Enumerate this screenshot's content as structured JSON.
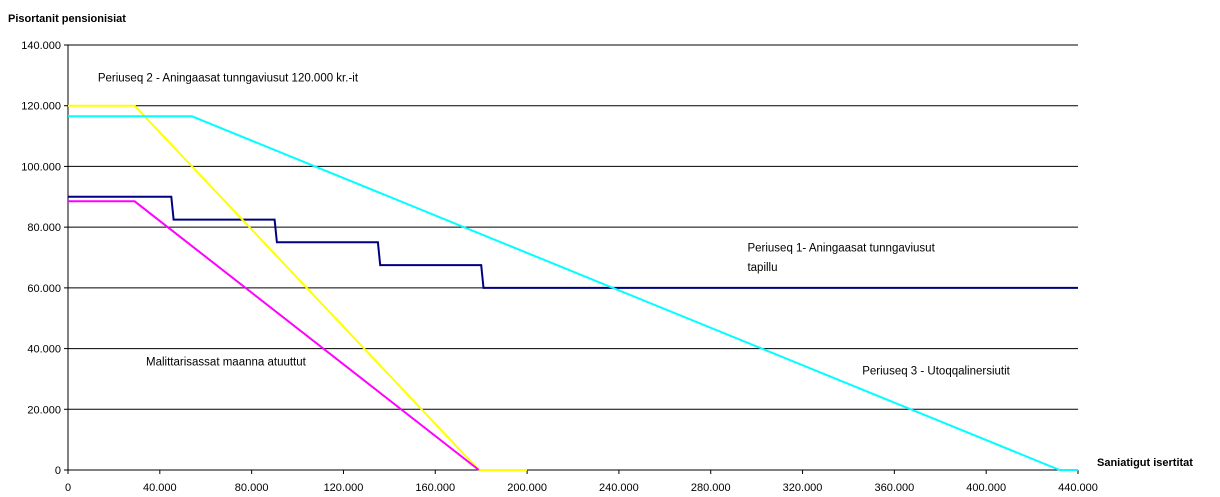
{
  "chart_data": {
    "type": "line",
    "ylabel": "Pisortanit pensionisiat",
    "xlabel": "Saniatigut isertitat",
    "xlim": [
      0,
      440000
    ],
    "ylim": [
      0,
      140000
    ],
    "x_ticks": [
      0,
      40000,
      80000,
      120000,
      160000,
      200000,
      240000,
      280000,
      320000,
      360000,
      400000,
      440000
    ],
    "x_tick_labels": [
      "0",
      "40.000",
      "80.000",
      "120.000",
      "160.000",
      "200.000",
      "240.000",
      "280.000",
      "320.000",
      "360.000",
      "400.000",
      "440.000"
    ],
    "y_ticks": [
      0,
      20000,
      40000,
      60000,
      80000,
      100000,
      120000,
      140000
    ],
    "y_tick_labels": [
      "0",
      "20.000",
      "40.000",
      "60.000",
      "80.000",
      "100.000",
      "120.000",
      "140.000"
    ],
    "grid": "horizontal",
    "series": [
      {
        "color": "#000080",
        "points": [
          [
            0,
            90000
          ],
          [
            45000,
            90000
          ],
          [
            46000,
            82500
          ],
          [
            90000,
            82500
          ],
          [
            91000,
            75000
          ],
          [
            135000,
            75000
          ],
          [
            136000,
            67500
          ],
          [
            180000,
            67500
          ],
          [
            181000,
            60000
          ],
          [
            440000,
            60000
          ]
        ]
      },
      {
        "color": "#FFFF00",
        "points": [
          [
            0,
            120000
          ],
          [
            29000,
            120000
          ],
          [
            179000,
            0
          ],
          [
            200000,
            0
          ]
        ]
      },
      {
        "color": "#00FFFF",
        "points": [
          [
            0,
            116500
          ],
          [
            54000,
            116500
          ],
          [
            432000,
            0
          ],
          [
            440000,
            0
          ]
        ]
      },
      {
        "color": "#FF00FF",
        "points": [
          [
            0,
            88500
          ],
          [
            29000,
            88500
          ],
          [
            179000,
            0
          ]
        ]
      }
    ],
    "annotations": [
      {
        "text": "Periuseq 2 - Aningaasat tunngaviusut 120.000 kr.-it",
        "x": 13000,
        "y": 128000
      },
      {
        "text": "Periuseq 1- Aningaasat tunngaviusut",
        "x": 296000,
        "y": 72000
      },
      {
        "text": "tapillu",
        "x": 296000,
        "y": 65500
      },
      {
        "text": "Malittarisassat maanna atuuttut",
        "x": 34000,
        "y": 34500
      },
      {
        "text": "Periuseq 3 - Utoqqalinersiutit",
        "x": 346000,
        "y": 31500
      }
    ]
  }
}
